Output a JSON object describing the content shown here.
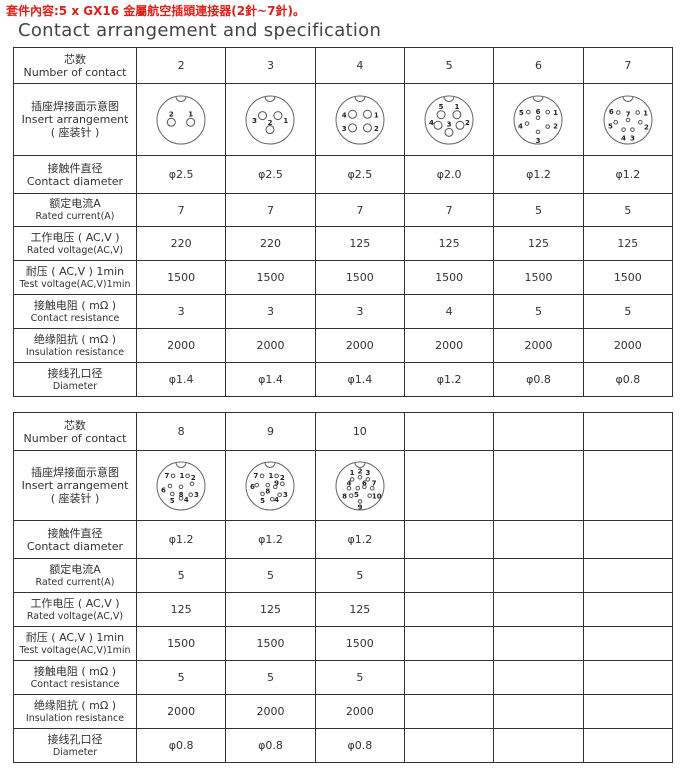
{
  "kit_note": "套件內容:5 x GX16 金屬航空插頭連接器(2針~7針)。",
  "title": "Contact arrangement and specification",
  "row_labels": {
    "contacts": {
      "cn": "芯数",
      "en": "Number of contact"
    },
    "insert": {
      "cn": "插座焊接面示意图",
      "en": "Insert arrangement",
      "cn2": "( 座装针 )"
    },
    "contact_diameter": {
      "cn": "接触件直径",
      "en": "Contact diameter"
    },
    "rated_current": {
      "cn": "额定电流A",
      "en": "Rated current(A)"
    },
    "rated_voltage": {
      "cn": "工作电压 ( AC,V )",
      "en": "Rated voltage(AC,V)"
    },
    "test_voltage": {
      "cn": "耐压 ( AC,V ) 1min",
      "en": "Test voltage(AC,V)1min"
    },
    "contact_resistance": {
      "cn": "接触电阻 ( mΩ )",
      "en": "Contact resistance"
    },
    "insulation_resistance": {
      "cn": "绝缘阻抗 ( mΩ )",
      "en": "Insulation resistance"
    },
    "diameter": {
      "cn": "接线孔口径",
      "en": "Diameter"
    }
  },
  "tables": [
    {
      "columns": [
        {
          "contacts": "2",
          "contact_diameter": "φ2.5",
          "rated_current": "7",
          "rated_voltage": "220",
          "test_voltage": "1500",
          "contact_resistance": "3",
          "insulation_resistance": "2000",
          "diameter": "φ1.4"
        },
        {
          "contacts": "3",
          "contact_diameter": "φ2.5",
          "rated_current": "7",
          "rated_voltage": "220",
          "test_voltage": "1500",
          "contact_resistance": "3",
          "insulation_resistance": "2000",
          "diameter": "φ1.4"
        },
        {
          "contacts": "4",
          "contact_diameter": "φ2.5",
          "rated_current": "7",
          "rated_voltage": "125",
          "test_voltage": "1500",
          "contact_resistance": "3",
          "insulation_resistance": "2000",
          "diameter": "φ1.4"
        },
        {
          "contacts": "5",
          "contact_diameter": "φ2.0",
          "rated_current": "7",
          "rated_voltage": "125",
          "test_voltage": "1500",
          "contact_resistance": "4",
          "insulation_resistance": "2000",
          "diameter": "φ1.2"
        },
        {
          "contacts": "6",
          "contact_diameter": "φ1.2",
          "rated_current": "5",
          "rated_voltage": "125",
          "test_voltage": "1500",
          "contact_resistance": "5",
          "insulation_resistance": "2000",
          "diameter": "φ0.8"
        },
        {
          "contacts": "7",
          "contact_diameter": "φ1.2",
          "rated_current": "5",
          "rated_voltage": "125",
          "test_voltage": "1500",
          "contact_resistance": "5",
          "insulation_resistance": "2000",
          "diameter": "φ0.8"
        }
      ]
    },
    {
      "columns": [
        {
          "contacts": "8",
          "contact_diameter": "φ1.2",
          "rated_current": "5",
          "rated_voltage": "125",
          "test_voltage": "1500",
          "contact_resistance": "5",
          "insulation_resistance": "2000",
          "diameter": "φ0.8"
        },
        {
          "contacts": "9",
          "contact_diameter": "φ1.2",
          "rated_current": "5",
          "rated_voltage": "125",
          "test_voltage": "1500",
          "contact_resistance": "5",
          "insulation_resistance": "2000",
          "diameter": "φ0.8"
        },
        {
          "contacts": "10",
          "contact_diameter": "φ1.2",
          "rated_current": "5",
          "rated_voltage": "125",
          "test_voltage": "1500",
          "contact_resistance": "5",
          "insulation_resistance": "2000",
          "diameter": "φ0.8"
        },
        {},
        {},
        {}
      ]
    }
  ],
  "colors": {
    "kit_note": "#e0201a",
    "border": "#333333",
    "text": "#333333"
  }
}
